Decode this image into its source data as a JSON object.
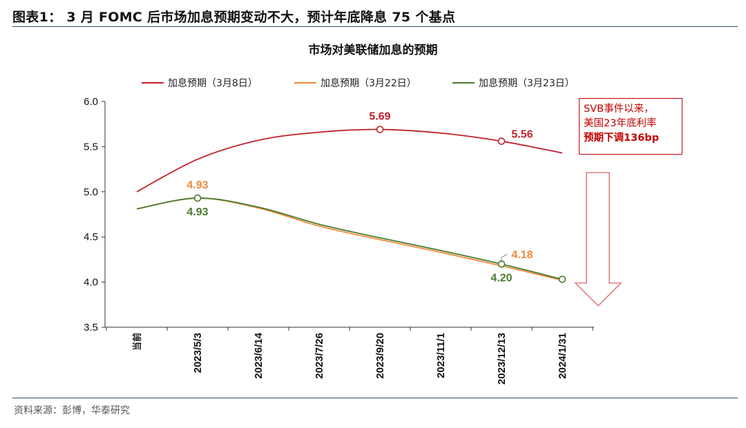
{
  "figure": {
    "title": "图表1： 3 月 FOMC 后市场加息预期变动不大，预计年底降息 75 个基点",
    "source": "资料来源：彭博，华泰研究"
  },
  "annotation": {
    "line1": "SVB事件以来，",
    "line2": "美国23年底利率",
    "line3": "预期下调136bp",
    "color": "#c00000"
  },
  "chart_data": {
    "type": "line",
    "title": "市场对美联储加息的预期",
    "xlabel": "",
    "ylabel": "",
    "ylim": [
      3.5,
      6.0
    ],
    "yticks": [
      "3.5",
      "4.0",
      "4.5",
      "5.0",
      "5.5",
      "6.0"
    ],
    "categories": [
      "当前",
      "2023/5/3",
      "2023/6/14",
      "2023/7/26",
      "2023/9/20",
      "2023/11/1",
      "2023/12/13",
      "2024/1/31"
    ],
    "legend_position": "top",
    "grid": false,
    "series": [
      {
        "name": "加息预期（3月8日）",
        "color": "#c0202a",
        "values": [
          5.0,
          5.36,
          5.57,
          5.66,
          5.69,
          5.65,
          5.56,
          5.43
        ]
      },
      {
        "name": "加息预期（3月22日）",
        "color": "#f08a3c",
        "values": [
          4.81,
          4.93,
          4.82,
          4.62,
          4.47,
          4.33,
          4.18,
          4.02
        ]
      },
      {
        "name": "加息预期（3月23日）",
        "color": "#4a7a2c",
        "values": [
          4.81,
          4.93,
          4.83,
          4.64,
          4.49,
          4.35,
          4.2,
          4.03
        ]
      }
    ],
    "data_labels": [
      {
        "series": 0,
        "index": 4,
        "text": "5.69",
        "color": "#c0202a",
        "pos": "above"
      },
      {
        "series": 0,
        "index": 6,
        "text": "5.56",
        "color": "#c0202a",
        "pos": "above-right"
      },
      {
        "series": 1,
        "index": 1,
        "text": "4.93",
        "color": "#f08a3c",
        "pos": "above"
      },
      {
        "series": 2,
        "index": 1,
        "text": "4.93",
        "color": "#4a7a2c",
        "pos": "below"
      },
      {
        "series": 1,
        "index": 6,
        "text": "4.18",
        "color": "#f08a3c",
        "pos": "leader-up-right"
      },
      {
        "series": 2,
        "index": 6,
        "text": "4.20",
        "color": "#4a7a2c",
        "pos": "below"
      }
    ],
    "markers": [
      {
        "series": 0,
        "index": 4
      },
      {
        "series": 0,
        "index": 6
      },
      {
        "series": 2,
        "index": 1
      },
      {
        "series": 2,
        "index": 6
      },
      {
        "series": 2,
        "index": 7
      }
    ]
  }
}
